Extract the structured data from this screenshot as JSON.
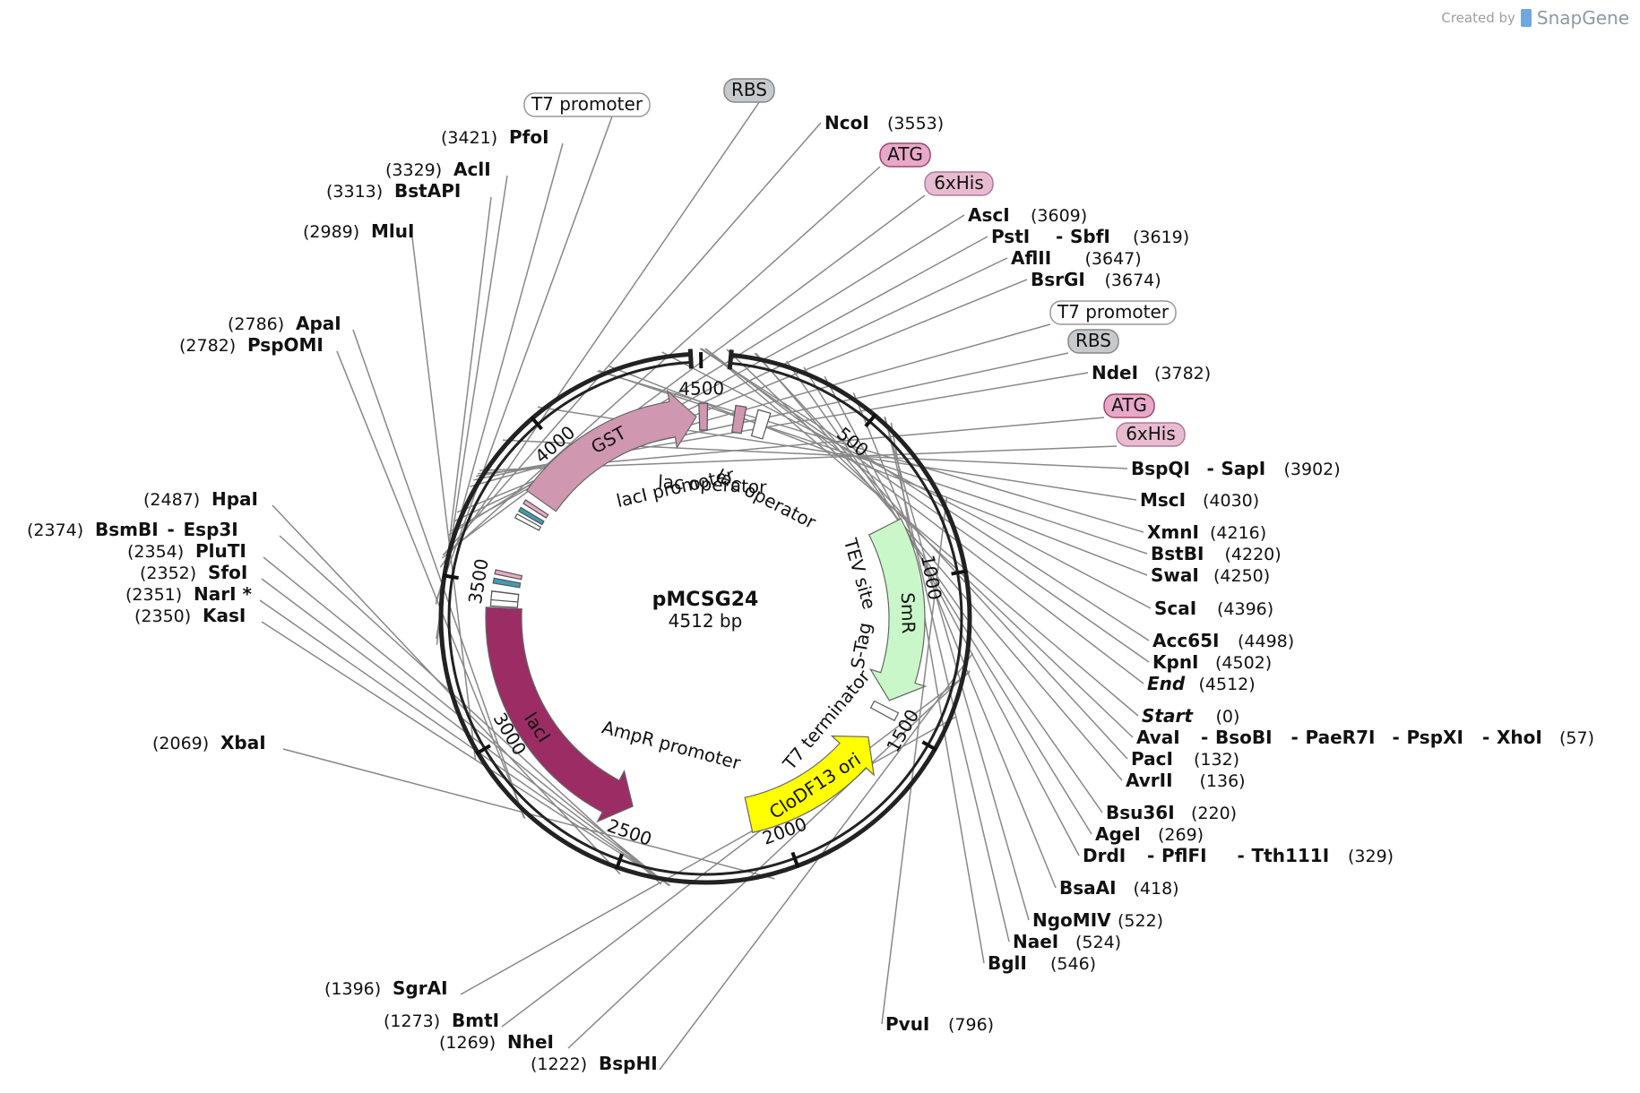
{
  "credit": {
    "prefix": "Created by",
    "brand": "SnapGene"
  },
  "plasmid": {
    "name": "pMCSG24",
    "size": "4512 bp"
  },
  "diagram_data": {
    "total_bp": 4512,
    "ticks": [
      {
        "bp": 500,
        "label": "500"
      },
      {
        "bp": 1000,
        "label": "1000"
      },
      {
        "bp": 1500,
        "label": "1500"
      },
      {
        "bp": 2000,
        "label": "2000"
      },
      {
        "bp": 2500,
        "label": "2500"
      },
      {
        "bp": 3000,
        "label": "3000"
      },
      {
        "bp": 3500,
        "label": "3500"
      },
      {
        "bp": 4000,
        "label": "4000"
      },
      {
        "bp": 4500,
        "label": "4500"
      }
    ],
    "features": [
      {
        "name": "lacI",
        "start": 2520,
        "end": 3420,
        "color": "#9b2d64",
        "strand": -1,
        "label_color": "#ffffff",
        "kind": "big"
      },
      {
        "name": "GST",
        "start": 3830,
        "end": 4480,
        "color": "#d097b0",
        "strand": 1,
        "label_color": "#111111",
        "kind": "big"
      },
      {
        "name": "CloDF13 ori",
        "start": 1580,
        "end": 2100,
        "color": "#ffff00",
        "strand": -1,
        "label_color": "#111111",
        "kind": "big"
      },
      {
        "name": "SmR",
        "start": 790,
        "end": 1430,
        "color": "#c9f7c9",
        "strand": 1,
        "label_color": "#111111",
        "kind": "big"
      }
    ],
    "features_label": [
      {
        "name": "lacI promoter",
        "angle": -13,
        "r": 148
      },
      {
        "name": "lac operator",
        "angle": 3,
        "r": 148
      },
      {
        "name": "lac operator",
        "angle": 27,
        "r": 148
      },
      {
        "name": "TEV site",
        "angle": 74,
        "r": 178
      },
      {
        "name": "S-Tag",
        "angle": 100,
        "r": 178
      },
      {
        "name": "T7 terminator",
        "angle": 130,
        "r": 178
      },
      {
        "name": "AmpR promoter",
        "angle": 195,
        "r": 148
      }
    ],
    "site_labels": [
      {
        "name": "T7 promoter",
        "kind": "box",
        "color": "#ffffff",
        "border": "#999999"
      },
      {
        "name": "RBS",
        "kind": "box",
        "color": "#c6cacd",
        "border": "#888888"
      },
      {
        "name": "ATG",
        "kind": "box",
        "color": "#e8a9c8",
        "border": "#a0466f"
      },
      {
        "name": "6xHis",
        "kind": "box",
        "color": "#e8bcd0",
        "border": "#b0789a"
      },
      {
        "name": "T7 promoter",
        "kind": "box",
        "color": "#ffffff",
        "border": "#999999"
      },
      {
        "name": "RBS",
        "kind": "box",
        "color": "#c6cacd",
        "border": "#888888"
      },
      {
        "name": "ATG",
        "kind": "box",
        "color": "#e8a9c8",
        "border": "#a0466f"
      },
      {
        "name": "6xHis",
        "kind": "box",
        "color": "#e8bcd0",
        "border": "#b0789a"
      }
    ],
    "enzymes_right": [
      {
        "names": [
          "NcoI"
        ],
        "pos": "(3553)"
      },
      {
        "names": [
          "AscI"
        ],
        "pos": "(3609)"
      },
      {
        "names": [
          "PstI",
          "SbfI"
        ],
        "pos": "(3619)"
      },
      {
        "names": [
          "AflII"
        ],
        "pos": "(3647)"
      },
      {
        "names": [
          "BsrGI"
        ],
        "pos": "(3674)"
      },
      {
        "names": [
          "NdeI"
        ],
        "pos": "(3782)"
      },
      {
        "names": [
          "BspQI",
          "SapI"
        ],
        "pos": "(3902)"
      },
      {
        "names": [
          "MscI"
        ],
        "pos": "(4030)"
      },
      {
        "names": [
          "XmnI"
        ],
        "pos": "(4216)"
      },
      {
        "names": [
          "BstBI"
        ],
        "pos": "(4220)"
      },
      {
        "names": [
          "SwaI"
        ],
        "pos": "(4250)"
      },
      {
        "names": [
          "ScaI"
        ],
        "pos": "(4396)"
      },
      {
        "names": [
          "Acc65I"
        ],
        "pos": "(4498)"
      },
      {
        "names": [
          "KpnI"
        ],
        "pos": "(4502)"
      },
      {
        "names": [
          "End"
        ],
        "pos": "(4512)",
        "italic": true
      },
      {
        "names": [
          "Start"
        ],
        "pos": "(0)",
        "italic": true
      },
      {
        "names": [
          "AvaI",
          "BsoBI",
          "PaeR7I",
          "PspXI",
          "XhoI"
        ],
        "pos": "(57)"
      },
      {
        "names": [
          "PacI"
        ],
        "pos": "(132)"
      },
      {
        "names": [
          "AvrII"
        ],
        "pos": "(136)"
      },
      {
        "names": [
          "Bsu36I"
        ],
        "pos": "(220)"
      },
      {
        "names": [
          "AgeI"
        ],
        "pos": "(269)"
      },
      {
        "names": [
          "DrdI",
          "PflFI",
          "Tth111I"
        ],
        "pos": "(329)"
      },
      {
        "names": [
          "BsaAI"
        ],
        "pos": "(418)"
      },
      {
        "names": [
          "NgoMIV"
        ],
        "pos": "(522)"
      },
      {
        "names": [
          "NaeI"
        ],
        "pos": "(524)"
      },
      {
        "names": [
          "BglI"
        ],
        "pos": "(546)"
      },
      {
        "names": [
          "PvuI"
        ],
        "pos": "(796)"
      }
    ],
    "enzymes_left": [
      {
        "names": [
          "PfoI"
        ],
        "pos": "(3421)"
      },
      {
        "names": [
          "AclI"
        ],
        "pos": "(3329)"
      },
      {
        "names": [
          "BstAPI"
        ],
        "pos": "(3313)"
      },
      {
        "names": [
          "MluI"
        ],
        "pos": "(2989)"
      },
      {
        "names": [
          "ApaI"
        ],
        "pos": "(2786)"
      },
      {
        "names": [
          "PspOMI"
        ],
        "pos": "(2782)"
      },
      {
        "names": [
          "HpaI"
        ],
        "pos": "(2487)"
      },
      {
        "names": [
          "BsmBI",
          "Esp3I"
        ],
        "pos": "(2374)"
      },
      {
        "names": [
          "PluTI"
        ],
        "pos": "(2354)"
      },
      {
        "names": [
          "SfoI"
        ],
        "pos": "(2352)"
      },
      {
        "names": [
          "NarI *"
        ],
        "pos": "(2351)",
        "gray": true
      },
      {
        "names": [
          "KasI"
        ],
        "pos": "(2350)"
      },
      {
        "names": [
          "XbaI"
        ],
        "pos": "(2069)"
      },
      {
        "names": [
          "SgrAI"
        ],
        "pos": "(1396)"
      },
      {
        "names": [
          "BmtI"
        ],
        "pos": "(1273)"
      },
      {
        "names": [
          "NheI"
        ],
        "pos": "(1269)"
      },
      {
        "names": [
          "BspHI"
        ],
        "pos": "(1222)"
      }
    ]
  }
}
